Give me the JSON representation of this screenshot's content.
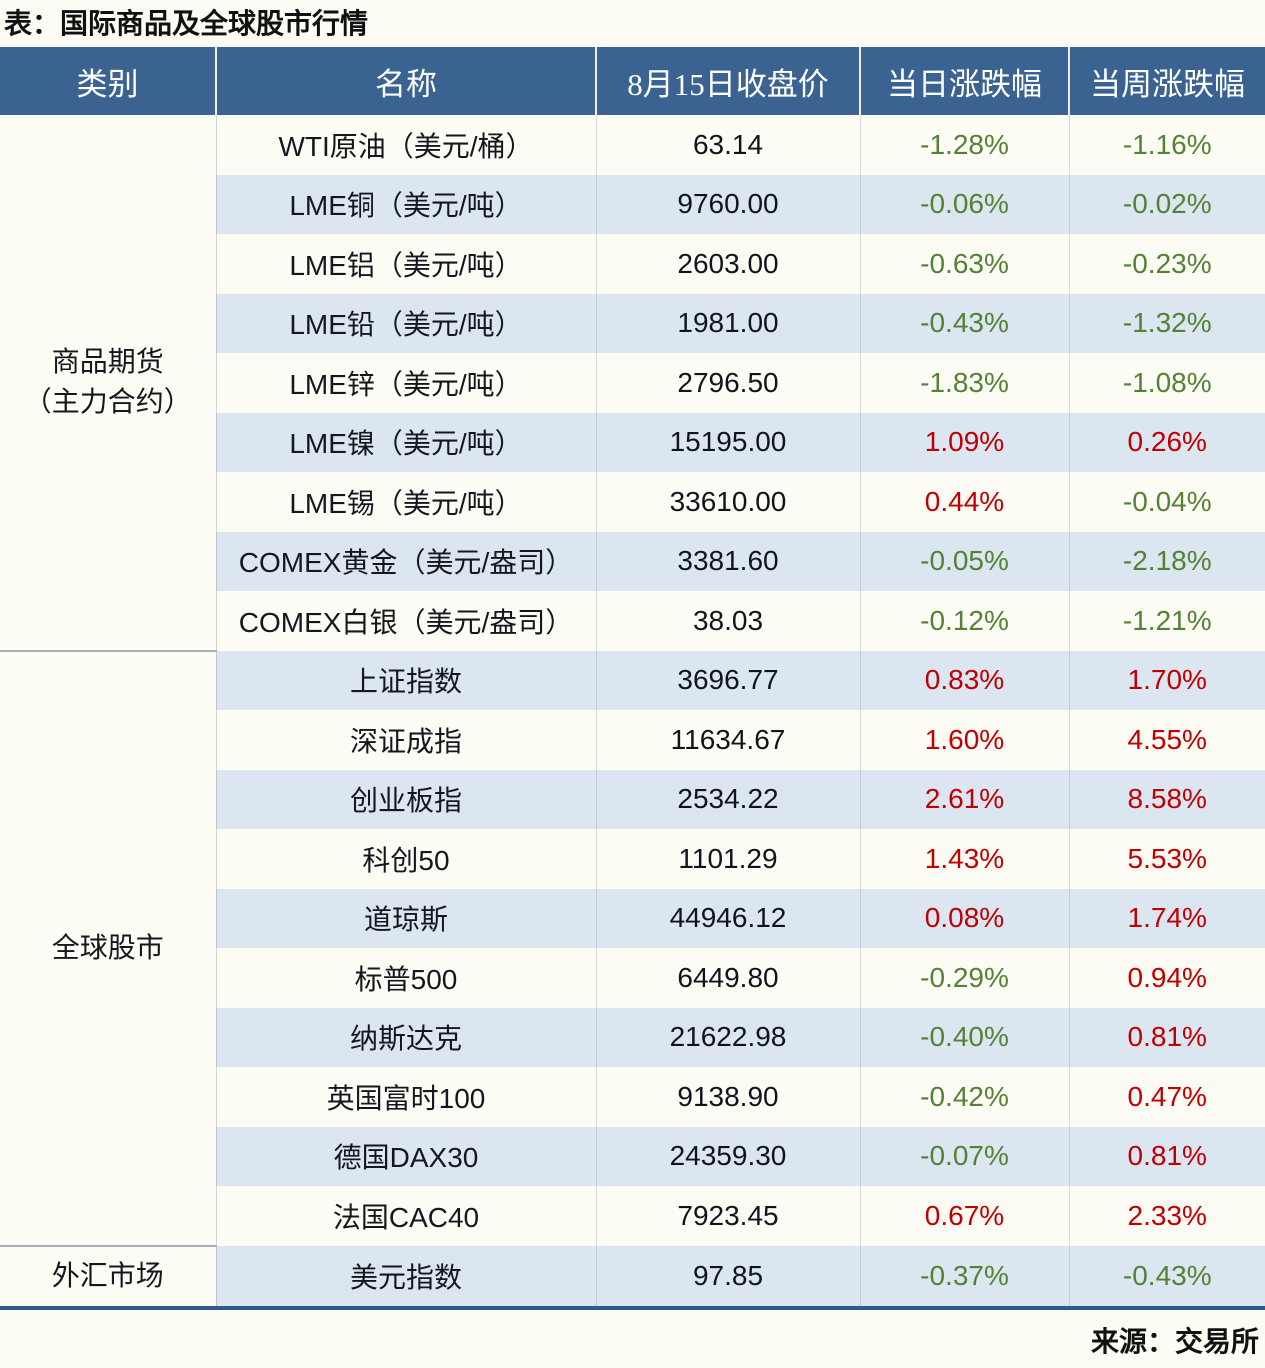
{
  "title": "表：国际商品及全球股市行情",
  "source": "来源：交易所",
  "table": {
    "headers": [
      "类别",
      "名称",
      "8月15日收盘价",
      "当日涨跌幅",
      "当周涨跌幅"
    ],
    "groups": [
      {
        "category": "商品期货（主力合约）",
        "category_lines": [
          "商品期货",
          "（主力合约）"
        ],
        "rows": [
          {
            "name": "WTI原油（美元/桶）",
            "close": "63.14",
            "daily": "-1.28%",
            "weekly": "-1.16%"
          },
          {
            "name": "LME铜（美元/吨）",
            "close": "9760.00",
            "daily": "-0.06%",
            "weekly": "-0.02%"
          },
          {
            "name": "LME铝（美元/吨）",
            "close": "2603.00",
            "daily": "-0.63%",
            "weekly": "-0.23%"
          },
          {
            "name": "LME铅（美元/吨）",
            "close": "1981.00",
            "daily": "-0.43%",
            "weekly": "-1.32%"
          },
          {
            "name": "LME锌（美元/吨）",
            "close": "2796.50",
            "daily": "-1.83%",
            "weekly": "-1.08%"
          },
          {
            "name": "LME镍（美元/吨）",
            "close": "15195.00",
            "daily": "1.09%",
            "weekly": "0.26%"
          },
          {
            "name": "LME锡（美元/吨）",
            "close": "33610.00",
            "daily": "0.44%",
            "weekly": "-0.04%"
          },
          {
            "name": "COMEX黄金（美元/盎司）",
            "close": "3381.60",
            "daily": "-0.05%",
            "weekly": "-2.18%"
          },
          {
            "name": "COMEX白银（美元/盎司）",
            "close": "38.03",
            "daily": "-0.12%",
            "weekly": "-1.21%"
          }
        ]
      },
      {
        "category": "全球股市",
        "category_lines": [
          "全球股市"
        ],
        "rows": [
          {
            "name": "上证指数",
            "close": "3696.77",
            "daily": "0.83%",
            "weekly": "1.70%"
          },
          {
            "name": "深证成指",
            "close": "11634.67",
            "daily": "1.60%",
            "weekly": "4.55%"
          },
          {
            "name": "创业板指",
            "close": "2534.22",
            "daily": "2.61%",
            "weekly": "8.58%"
          },
          {
            "name": "科创50",
            "close": "1101.29",
            "daily": "1.43%",
            "weekly": "5.53%"
          },
          {
            "name": "道琼斯",
            "close": "44946.12",
            "daily": "0.08%",
            "weekly": "1.74%"
          },
          {
            "name": "标普500",
            "close": "6449.80",
            "daily": "-0.29%",
            "weekly": "0.94%"
          },
          {
            "name": "纳斯达克",
            "close": "21622.98",
            "daily": "-0.40%",
            "weekly": "0.81%"
          },
          {
            "name": "英国富时100",
            "close": "9138.90",
            "daily": "-0.42%",
            "weekly": "0.47%"
          },
          {
            "name": "德国DAX30",
            "close": "24359.30",
            "daily": "-0.07%",
            "weekly": "0.81%"
          },
          {
            "name": "法国CAC40",
            "close": "7923.45",
            "daily": "0.67%",
            "weekly": "2.33%"
          }
        ]
      },
      {
        "category": "外汇市场",
        "category_lines": [
          "外汇市场"
        ],
        "rows": [
          {
            "name": "美元指数",
            "close": "97.85",
            "daily": "-0.37%",
            "weekly": "-0.43%"
          }
        ]
      }
    ]
  },
  "colors": {
    "header_bg": "#3B6392",
    "header_text": "#FFFFFF",
    "row_bg": "#FCFCF4",
    "row_alt_bg": "#DCE6F0",
    "up_red": "#C00000",
    "down_green": "#548235",
    "bottom_border_blue": "#2E5A8C"
  },
  "chart_data": {
    "type": "table",
    "title": "表：国际商品及全球股市行情",
    "columns": [
      "类别",
      "名称",
      "8月15日收盘价",
      "当日涨跌幅",
      "当周涨跌幅"
    ],
    "rows": [
      [
        "商品期货（主力合约）",
        "WTI原油（美元/桶）",
        "63.14",
        "-1.28%",
        "-1.16%"
      ],
      [
        "商品期货（主力合约）",
        "LME铜（美元/吨）",
        "9760.00",
        "-0.06%",
        "-0.02%"
      ],
      [
        "商品期货（主力合约）",
        "LME铝（美元/吨）",
        "2603.00",
        "-0.63%",
        "-0.23%"
      ],
      [
        "商品期货（主力合约）",
        "LME铅（美元/吨）",
        "1981.00",
        "-0.43%",
        "-1.32%"
      ],
      [
        "商品期货（主力合约）",
        "LME锌（美元/吨）",
        "2796.50",
        "-1.83%",
        "-1.08%"
      ],
      [
        "商品期货（主力合约）",
        "LME镍（美元/吨）",
        "15195.00",
        "1.09%",
        "0.26%"
      ],
      [
        "商品期货（主力合约）",
        "LME锡（美元/吨）",
        "33610.00",
        "0.44%",
        "-0.04%"
      ],
      [
        "商品期货（主力合约）",
        "COMEX黄金（美元/盎司）",
        "3381.60",
        "-0.05%",
        "-2.18%"
      ],
      [
        "商品期货（主力合约）",
        "COMEX白银（美元/盎司）",
        "38.03",
        "-0.12%",
        "-1.21%"
      ],
      [
        "全球股市",
        "上证指数",
        "3696.77",
        "0.83%",
        "1.70%"
      ],
      [
        "全球股市",
        "深证成指",
        "11634.67",
        "1.60%",
        "4.55%"
      ],
      [
        "全球股市",
        "创业板指",
        "2534.22",
        "2.61%",
        "8.58%"
      ],
      [
        "全球股市",
        "科创50",
        "1101.29",
        "1.43%",
        "5.53%"
      ],
      [
        "全球股市",
        "道琼斯",
        "44946.12",
        "0.08%",
        "1.74%"
      ],
      [
        "全球股市",
        "标普500",
        "6449.80",
        "-0.29%",
        "0.94%"
      ],
      [
        "全球股市",
        "纳斯达克",
        "21622.98",
        "-0.40%",
        "0.81%"
      ],
      [
        "全球股市",
        "英国富时100",
        "9138.90",
        "-0.42%",
        "0.47%"
      ],
      [
        "全球股市",
        "德国DAX30",
        "24359.30",
        "-0.07%",
        "0.81%"
      ],
      [
        "全球股市",
        "法国CAC40",
        "7923.45",
        "0.67%",
        "2.33%"
      ],
      [
        "外汇市场",
        "美元指数",
        "97.85",
        "-0.37%",
        "-0.43%"
      ]
    ],
    "source": "来源：交易所",
    "color_semantics": {
      "red": "positive change (up)",
      "green": "negative change (down)"
    },
    "legend_position": "none",
    "grid": "row striping + column dividers"
  }
}
